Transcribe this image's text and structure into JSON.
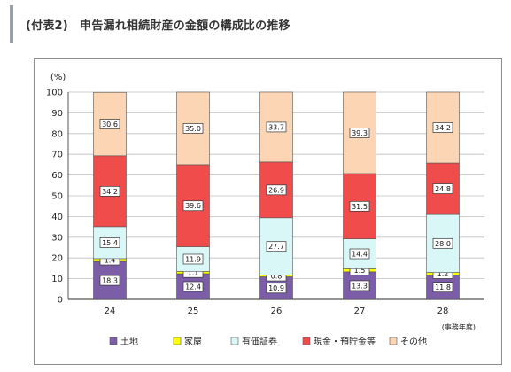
{
  "header": {
    "title": "(付表2)　申告漏れ相続財産の金額の構成比の推移"
  },
  "chart_data": {
    "type": "bar",
    "stacked": true,
    "y_unit": "(%)",
    "x_unit": "(事務年度)",
    "ylim": [
      0,
      100
    ],
    "yticks": [
      0,
      10,
      20,
      30,
      40,
      50,
      60,
      70,
      80,
      90,
      100
    ],
    "grid": true,
    "legend": "bottom",
    "categories": [
      "24",
      "25",
      "26",
      "27",
      "28"
    ],
    "series": [
      {
        "name": "土地",
        "color": "#7b5ea7",
        "values": [
          18.3,
          12.4,
          10.9,
          13.3,
          11.8
        ],
        "labels": [
          "18.3",
          "12.4",
          "10.9",
          "13.3",
          "11.8"
        ]
      },
      {
        "name": "家屋",
        "color": "#ffff00",
        "values": [
          1.4,
          1.1,
          0.8,
          1.5,
          1.2
        ],
        "labels": [
          "1.4",
          "1.1",
          "0.8",
          "1.5",
          "1.2"
        ]
      },
      {
        "name": "有価証券",
        "color": "#d9f7f7",
        "values": [
          15.4,
          11.9,
          27.7,
          14.4,
          28.0
        ],
        "labels": [
          "15.4",
          "11.9",
          "27.7",
          "14.4",
          "28.0"
        ]
      },
      {
        "name": "現金・預貯金等",
        "color": "#f14c4c",
        "values": [
          34.2,
          39.6,
          26.9,
          31.5,
          24.8
        ],
        "labels": [
          "34.2",
          "39.6",
          "26.9",
          "31.5",
          "24.8"
        ]
      },
      {
        "name": "その他",
        "color": "#fcd5b4",
        "values": [
          30.6,
          35.0,
          33.7,
          39.3,
          34.2
        ],
        "labels": [
          "30.6",
          "35.0",
          "33.7",
          "39.3",
          "34.2"
        ]
      }
    ]
  }
}
